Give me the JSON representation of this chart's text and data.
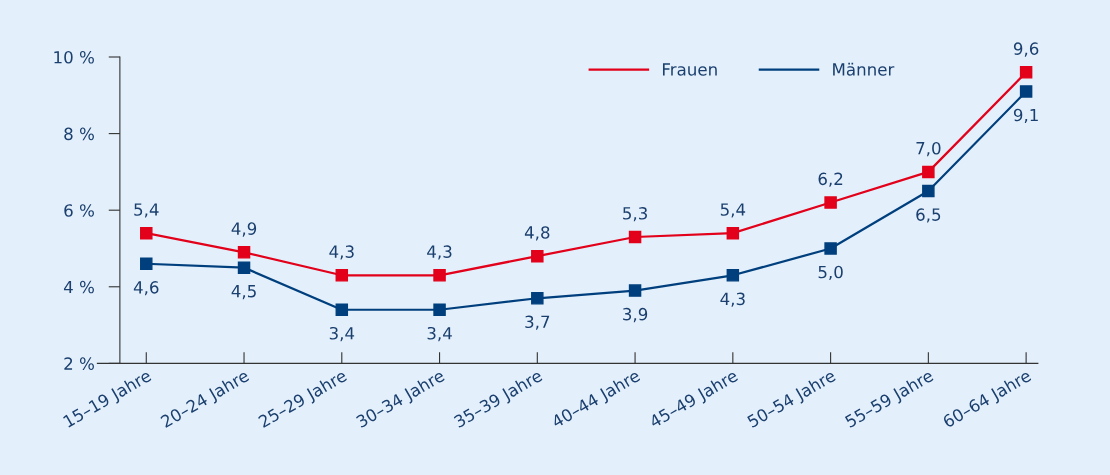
{
  "chart_data": {
    "type": "line",
    "categories": [
      "15–19 Jahre",
      "20–24 Jahre",
      "25–29 Jahre",
      "30–34 Jahre",
      "35–39 Jahre",
      "40–44 Jahre",
      "45–49 Jahre",
      "50–54 Jahre",
      "55–59 Jahre",
      "60–64 Jahre"
    ],
    "series": [
      {
        "name": "Frauen",
        "color": "#e2001a",
        "values": [
          5.4,
          4.9,
          4.3,
          4.3,
          4.8,
          5.3,
          5.4,
          6.2,
          7.0,
          9.6
        ],
        "value_labels": [
          "5,4",
          "4,9",
          "4,3",
          "4,3",
          "4,8",
          "5,3",
          "5,4",
          "6,2",
          "7,0",
          "9,6"
        ]
      },
      {
        "name": "Männer",
        "color": "#003f7d",
        "values": [
          4.6,
          4.5,
          3.4,
          3.4,
          3.7,
          3.9,
          4.3,
          5.0,
          6.5,
          9.1
        ],
        "value_labels": [
          "4,6",
          "4,5",
          "3,4",
          "3,4",
          "3,7",
          "3,9",
          "4,3",
          "5,0",
          "6,5",
          "9,1"
        ]
      }
    ],
    "ylim": [
      2,
      10
    ],
    "yticks": [
      {
        "value": 2,
        "label": "2 %"
      },
      {
        "value": 4,
        "label": "4 %"
      },
      {
        "value": 6,
        "label": "6 %"
      },
      {
        "value": 8,
        "label": "8 %"
      },
      {
        "value": 10,
        "label": "10 %"
      }
    ],
    "marker": "square",
    "line_style": "solid",
    "grid": false,
    "legend": "top right"
  }
}
